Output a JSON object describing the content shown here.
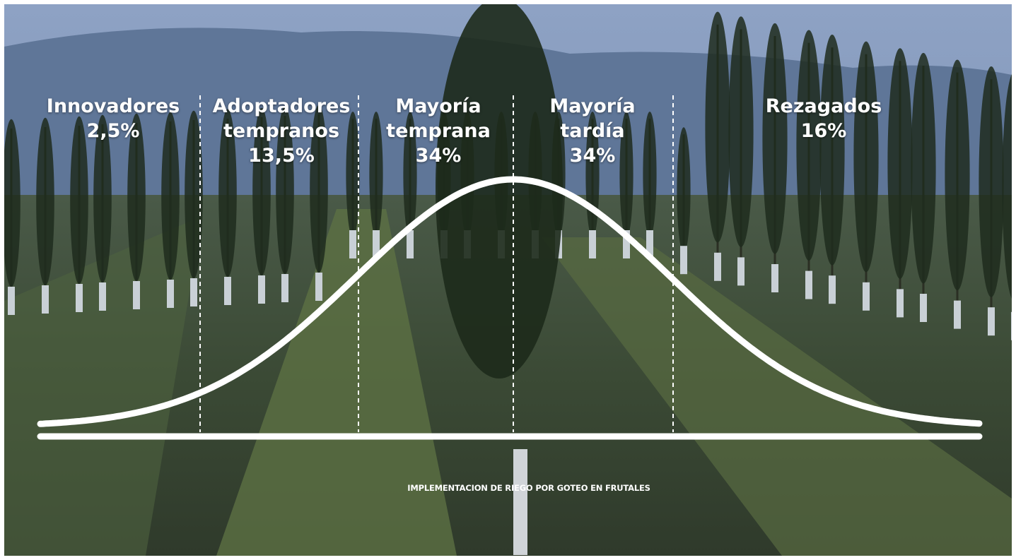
{
  "segments": [
    {
      "label": "Innovadores",
      "share": "2,5%"
    },
    {
      "label": "Adoptadores tempranos",
      "share": "13,5%"
    },
    {
      "label": "Mayoría temprana",
      "share": "34%"
    },
    {
      "label": "Mayoría tardía",
      "share": "34%"
    },
    {
      "label": "Rezagados",
      "share": "16%"
    }
  ],
  "caption": "IMPLEMENTACION DE RIEGO POR GOTEO EN FRUTALES"
}
